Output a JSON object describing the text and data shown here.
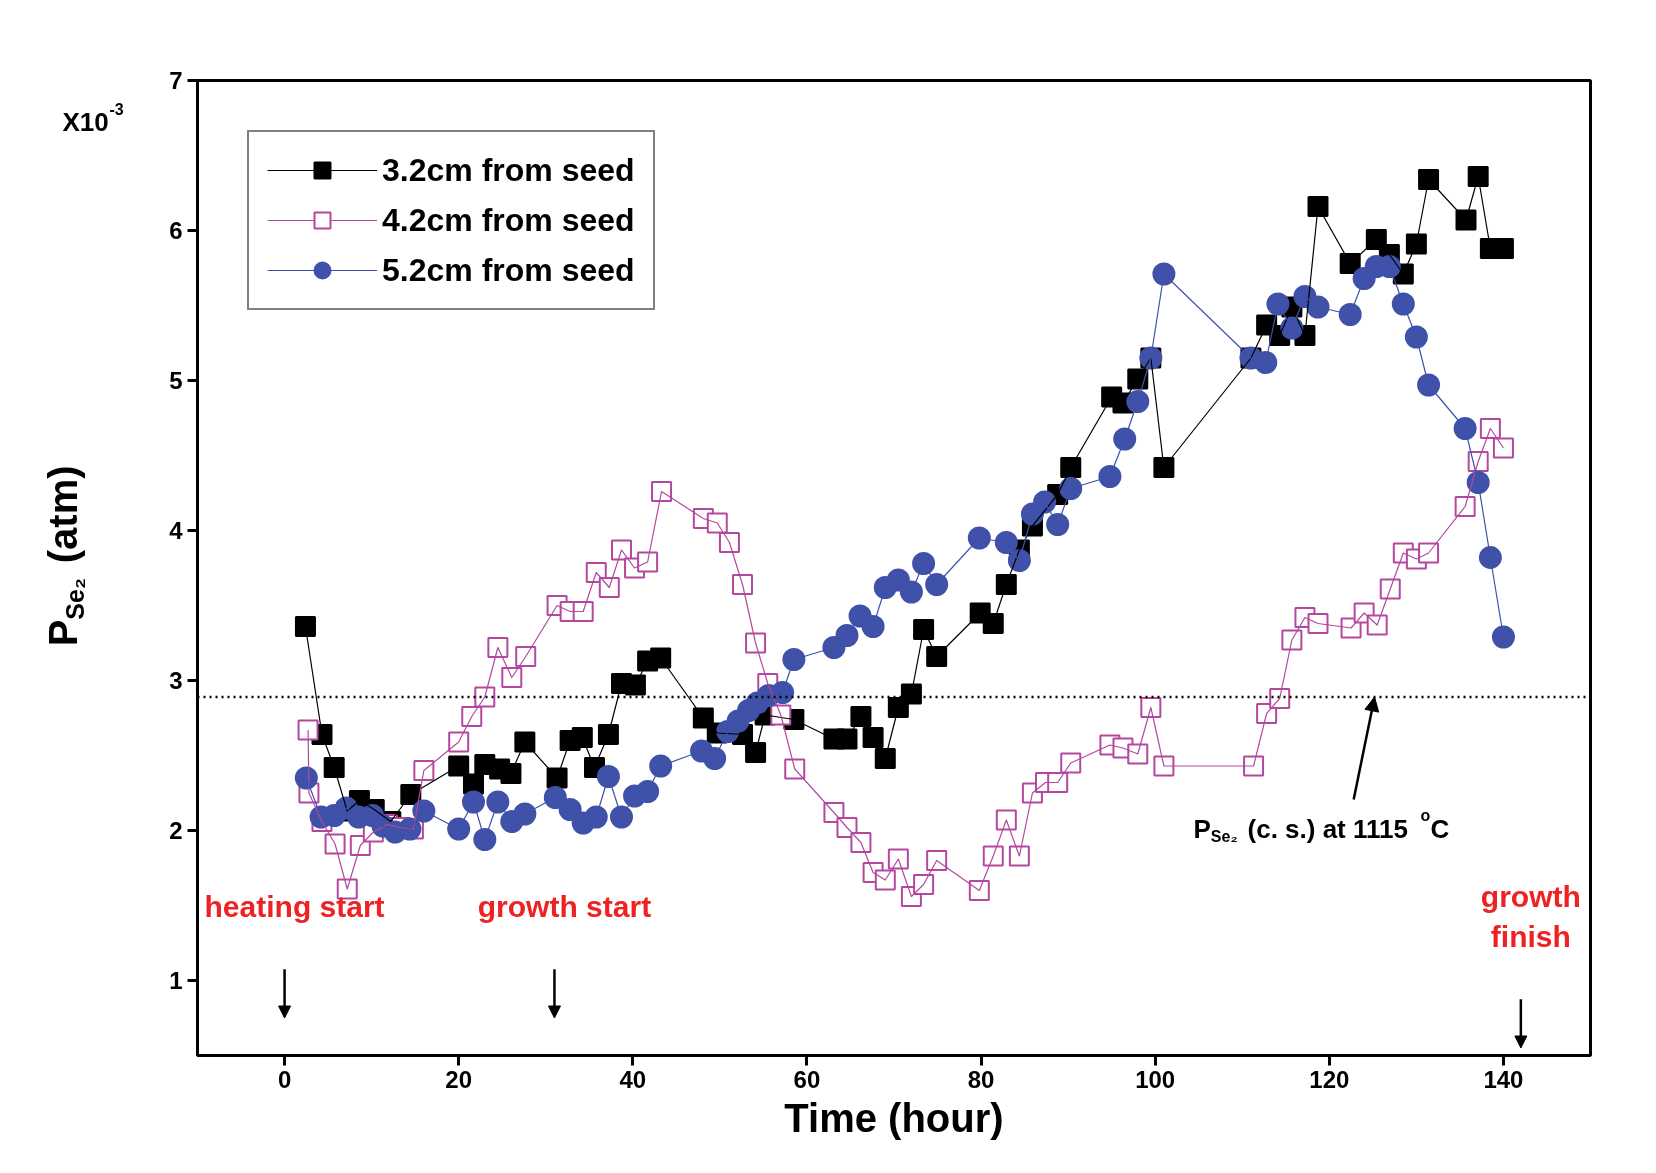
{
  "chart_data": {
    "type": "line",
    "xlabel": "Time (hour)",
    "ylabel": "P$_{Se₂}$ (atm)",
    "xlim": [
      -10,
      150
    ],
    "ylim": [
      0.5,
      7
    ],
    "xticks": [
      0,
      20,
      40,
      60,
      80,
      100,
      120,
      140
    ],
    "yticks": [
      1,
      2,
      3,
      4,
      5,
      6,
      7
    ],
    "grid": false,
    "legend": "top left",
    "line_style": "solid",
    "series": [
      {
        "name": "3.2cm from seed",
        "color": "#000000",
        "marker": "square",
        "x": [
          2.4,
          4.3,
          5.7,
          7.2,
          8.6,
          10.3,
          12.2,
          14.5,
          20.0,
          21.7,
          23.0,
          24.7,
          26.0,
          27.6,
          31.3,
          32.8,
          34.2,
          35.6,
          37.2,
          38.7,
          40.3,
          41.7,
          43.2,
          48.1,
          49.7,
          52.6,
          54.1,
          55.2,
          58.5,
          63.1,
          64.6,
          66.2,
          67.6,
          69.0,
          70.5,
          72.0,
          73.4,
          74.9,
          79.9,
          81.4,
          82.9,
          84.4,
          85.9,
          88.8,
          90.3,
          95.0,
          96.3,
          98.0,
          99.5,
          101.0,
          111.0,
          112.8,
          114.3,
          115.7,
          117.2,
          118.7,
          122.4,
          125.4,
          126.9,
          128.5,
          130.0,
          131.4,
          135.7,
          137.1,
          138.5,
          140.0
        ],
        "values": [
          3.36,
          2.64,
          2.42,
          2.13,
          2.2,
          2.14,
          2.06,
          2.24,
          2.43,
          2.31,
          2.44,
          2.41,
          2.38,
          2.59,
          2.35,
          2.6,
          2.62,
          2.42,
          2.64,
          2.98,
          2.97,
          3.13,
          3.15,
          2.75,
          2.65,
          2.64,
          2.52,
          2.77,
          2.74,
          2.61,
          2.61,
          2.76,
          2.62,
          2.48,
          2.82,
          2.91,
          3.34,
          3.16,
          3.45,
          3.38,
          3.64,
          3.87,
          4.03,
          4.24,
          4.42,
          4.89,
          4.85,
          5.01,
          5.15,
          4.42,
          5.15,
          5.37,
          5.3,
          5.49,
          5.3,
          6.16,
          5.78,
          5.94,
          5.84,
          5.71,
          5.91,
          6.34,
          6.07,
          6.36,
          5.88,
          5.88
        ]
      },
      {
        "name": "4.2cm from seed",
        "color": "#b5489e",
        "marker": "square_open",
        "x": [
          2.7,
          2.8,
          4.3,
          5.8,
          7.2,
          8.7,
          10.2,
          11.8,
          13.3,
          14.8,
          16.0,
          20.0,
          21.5,
          23.0,
          24.5,
          26.1,
          27.7,
          31.3,
          32.8,
          34.3,
          35.8,
          37.3,
          38.7,
          40.2,
          41.7,
          43.3,
          48.1,
          49.7,
          51.1,
          52.6,
          54.1,
          55.5,
          57.0,
          58.6,
          63.1,
          64.6,
          66.2,
          67.6,
          69.0,
          70.5,
          72.0,
          73.4,
          74.9,
          79.8,
          81.4,
          82.9,
          84.4,
          85.9,
          87.4,
          88.8,
          90.3,
          94.8,
          96.3,
          98.0,
          99.5,
          101.0,
          111.3,
          112.8,
          114.3,
          115.7,
          117.2,
          118.7,
          122.5,
          124.0,
          125.5,
          127.0,
          128.5,
          130.0,
          131.4,
          135.6,
          137.1,
          138.5,
          140.0
        ],
        "values": [
          2.67,
          2.25,
          2.06,
          1.91,
          1.61,
          1.9,
          1.99,
          2.04,
          2.02,
          2.01,
          2.4,
          2.59,
          2.76,
          2.89,
          3.22,
          3.02,
          3.16,
          3.5,
          3.46,
          3.46,
          3.72,
          3.62,
          3.87,
          3.75,
          3.79,
          4.26,
          4.08,
          4.05,
          3.92,
          3.64,
          3.25,
          2.98,
          2.77,
          2.41,
          2.12,
          2.02,
          1.92,
          1.72,
          1.67,
          1.81,
          1.56,
          1.64,
          1.8,
          1.6,
          1.83,
          2.07,
          1.83,
          2.25,
          2.32,
          2.32,
          2.45,
          2.57,
          2.55,
          2.51,
          2.82,
          2.43,
          2.43,
          2.78,
          2.88,
          3.27,
          3.42,
          3.38,
          3.35,
          3.45,
          3.37,
          3.61,
          3.85,
          3.81,
          3.85,
          4.16,
          4.46,
          4.68,
          4.55
        ]
      },
      {
        "name": "5.2cm from seed",
        "color": "#3f51a8",
        "marker": "circle",
        "x": [
          2.5,
          4.2,
          5.7,
          7.1,
          8.5,
          10.1,
          11.3,
          12.7,
          14.4,
          16.0,
          20.0,
          21.7,
          23.0,
          24.5,
          26.1,
          27.6,
          31.1,
          32.8,
          34.3,
          35.8,
          37.2,
          38.7,
          40.2,
          41.7,
          43.2,
          47.9,
          49.4,
          50.9,
          52.1,
          53.3,
          54.3,
          55.6,
          57.2,
          58.5,
          63.1,
          64.6,
          66.1,
          67.6,
          69.0,
          70.5,
          72.0,
          73.4,
          74.9,
          79.8,
          82.9,
          84.4,
          85.9,
          87.3,
          88.8,
          90.3,
          94.8,
          96.5,
          98.0,
          99.5,
          101.0,
          111.0,
          112.7,
          114.1,
          115.7,
          117.2,
          118.7,
          122.4,
          124.0,
          125.4,
          126.9,
          128.5,
          130.0,
          131.4,
          135.6,
          137.1,
          138.5,
          140.0
        ],
        "values": [
          2.35,
          2.09,
          2.1,
          2.15,
          2.09,
          2.1,
          2.03,
          1.99,
          2.01,
          2.13,
          2.01,
          2.19,
          1.94,
          2.19,
          2.06,
          2.11,
          2.22,
          2.14,
          2.05,
          2.09,
          2.36,
          2.09,
          2.23,
          2.26,
          2.43,
          2.53,
          2.48,
          2.66,
          2.73,
          2.8,
          2.85,
          2.9,
          2.92,
          3.14,
          3.22,
          3.3,
          3.43,
          3.36,
          3.62,
          3.67,
          3.59,
          3.78,
          3.64,
          3.95,
          3.92,
          3.8,
          4.11,
          4.19,
          4.04,
          4.28,
          4.36,
          4.61,
          4.86,
          5.15,
          5.71,
          5.15,
          5.12,
          5.51,
          5.35,
          5.56,
          5.49,
          5.44,
          5.68,
          5.76,
          5.76,
          5.51,
          5.29,
          4.97,
          4.68,
          4.32,
          3.82,
          3.29
        ]
      }
    ],
    "ref_lines": [
      {
        "axis": "y",
        "value": 2.89,
        "label": "P$_{Se₂}$ (c. s.) at 1115 $^{o}$C",
        "color": "#000000",
        "line_style": "dotted"
      }
    ],
    "annotations": [
      "X10$^{-3}$",
      "heating start",
      "growth start",
      "growth finish"
    ]
  }
}
